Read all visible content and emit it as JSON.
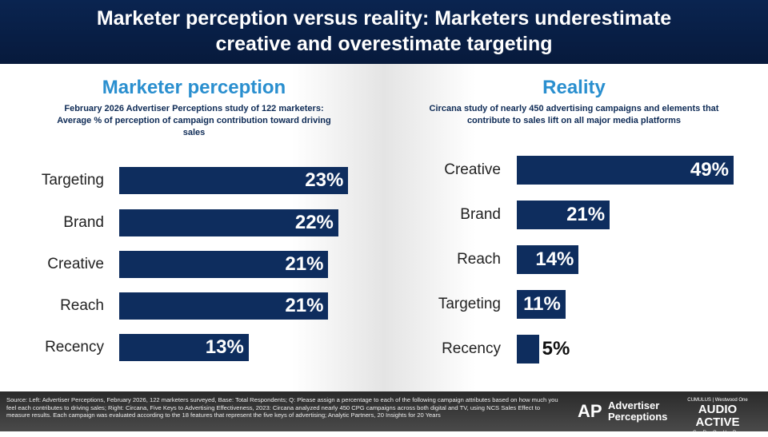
{
  "header": {
    "title_line1": "Marketer perception versus reality: Marketers underestimate",
    "title_line2": "creative and overestimate targeting"
  },
  "chart_data": [
    {
      "type": "bar",
      "orientation": "horizontal",
      "title": "Marketer perception",
      "subtitle": "February 2026 Advertiser Perceptions study of 122 marketers: Average % of perception of campaign contribution toward driving sales",
      "categories": [
        "Targeting",
        "Brand",
        "Creative",
        "Reach",
        "Recency"
      ],
      "values": [
        23,
        22,
        21,
        21,
        13
      ],
      "labels": [
        "23%",
        "22%",
        "21%",
        "21%",
        "13%"
      ],
      "unit": "%",
      "bar_color": "#0e2d5e",
      "grid": false
    },
    {
      "type": "bar",
      "orientation": "horizontal",
      "title": "Reality",
      "subtitle": "Circana study of nearly 450 advertising campaigns and elements that contribute to sales lift on all major media platforms",
      "categories": [
        "Creative",
        "Brand",
        "Reach",
        "Targeting",
        "Recency"
      ],
      "values": [
        49,
        21,
        14,
        11,
        5
      ],
      "labels": [
        "49%",
        "21%",
        "14%",
        "11%",
        "5%"
      ],
      "unit": "%",
      "bar_color": "#0e2d5e",
      "grid": false
    }
  ],
  "footer": {
    "source": "Source: Left: Advertiser Perceptions, February 2026, 122 marketers surveyed, Base: Total Respondents; Q: Please assign a percentage to each of the following campaign attributes based on how much you feel each contributes to driving sales; Right: Circana, Five Keys to Advertising Effectiveness, 2023: Circana analyzed nearly 450 CPG campaigns across both digital and TV, using NCS Sales Effect to measure results. Each campaign was evaluated according to the 18 features that represent the five keys of advertising; Analytic Partners, 20 Insights for 20 Years",
    "logo1_line1": "Advertiser",
    "logo1_line2": "Perceptions",
    "logo2_top": "CUMULUS | Westwood One",
    "logo2_main": "AUDIO ACTIVE",
    "logo2_sub": "GROUP"
  }
}
